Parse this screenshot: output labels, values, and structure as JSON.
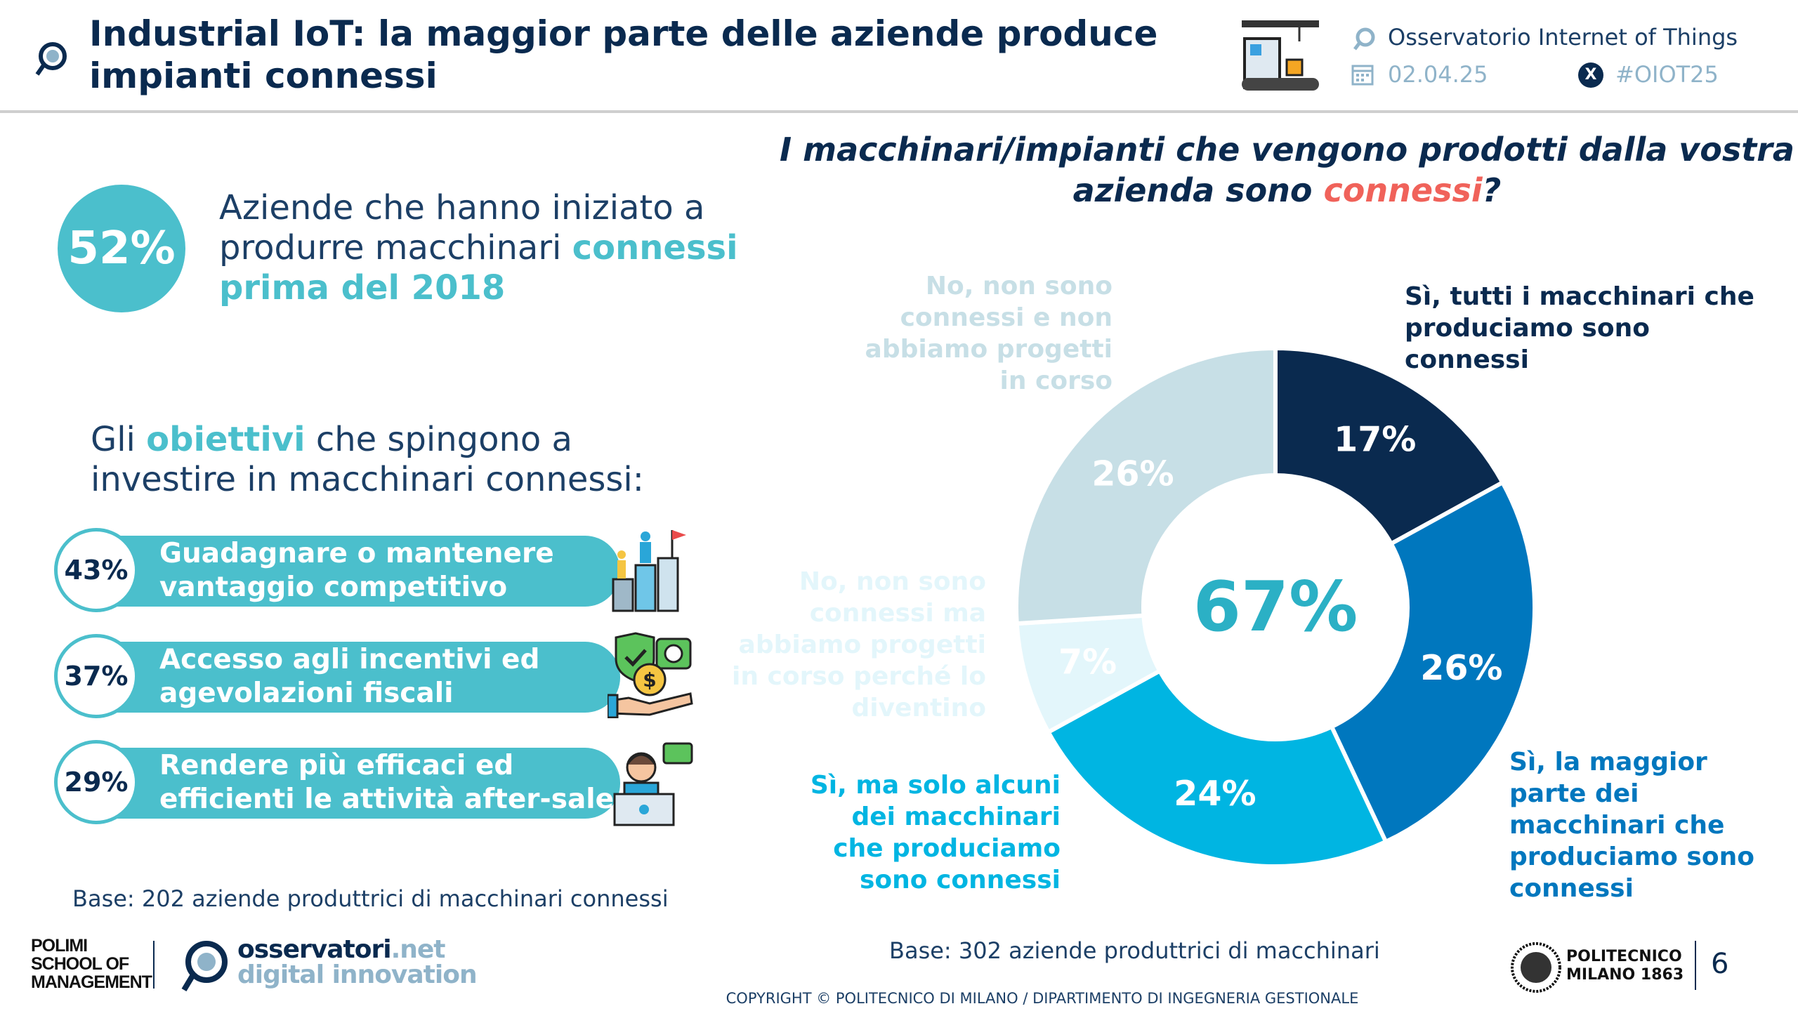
{
  "header": {
    "title": "Industrial IoT: la maggior parte delle aziende produce impianti connessi",
    "observatory": "Osservatorio Internet of Things",
    "date": "02.04.25",
    "hashtag": "#OIOT25"
  },
  "left": {
    "highlight_pct": "52%",
    "highlight_text_1": "Aziende che hanno iniziato a produrre macchinari ",
    "highlight_text_2": "connessi prima del 2018",
    "goals_title_1": "Gli ",
    "goals_title_2": "obiettivi",
    "goals_title_3": " che spingono a investire in macchinari connessi:",
    "goals": [
      {
        "pct": "43%",
        "label": "Guadagnare o mantenere vantaggio competitivo",
        "value": 43,
        "icon": "competitive-advantage-icon"
      },
      {
        "pct": "37%",
        "label": "Accesso agli incentivi ed agevolazioni fiscali",
        "value": 37,
        "icon": "tax-incentive-icon"
      },
      {
        "pct": "29%",
        "label": "Rendere più efficaci ed efficienti le attività after-sales",
        "value": 29,
        "icon": "customer-support-icon"
      }
    ],
    "base": "Base: 202 aziende produttrici di macchinari connessi"
  },
  "chart_data": {
    "type": "pie",
    "title_1": "I macchinari/impianti che vengono prodotti dalla vostra azienda sono ",
    "title_2": "connessi",
    "title_3": "?",
    "center_label": "67%",
    "slices": [
      {
        "label": "Sì, tutti i macchinari che produciamo sono connessi",
        "value": 17,
        "pct": "17%",
        "color": "#0a2a4f"
      },
      {
        "label": "Sì, la maggior parte dei macchinari che produciamo sono connessi",
        "value": 26,
        "pct": "26%",
        "color": "#0077be"
      },
      {
        "label": "Sì, ma solo alcuni dei macchinari che produciamo sono connessi",
        "value": 24,
        "pct": "24%",
        "color": "#00b5e2"
      },
      {
        "label": "No, non sono connessi ma abbiamo progetti in corso perché lo diventino",
        "value": 7,
        "pct": "7%",
        "color": "#e3f6fb"
      },
      {
        "label": "No, non sono connessi e non abbiamo progetti in corso",
        "value": 26,
        "pct": "26%",
        "color": "#c7dfe6"
      }
    ],
    "base": "Base: 302 aziende produttrici di macchinari"
  },
  "footer": {
    "polimi_logo": "POLIMI SCHOOL OF MANAGEMENT",
    "osservatori_1": "osservatori",
    "osservatori_2": ".net",
    "osservatori_3": "digital innovation",
    "politecnico": "POLITECNICO MILANO 1863",
    "copyright": "COPYRIGHT © POLITECNICO DI MILANO / DIPARTIMENTO DI INGEGNERIA GESTIONALE",
    "page": "6"
  },
  "colors": {
    "navy": "#0a2a4f",
    "teal": "#4bbfcc",
    "accent_red": "#f0625a"
  }
}
